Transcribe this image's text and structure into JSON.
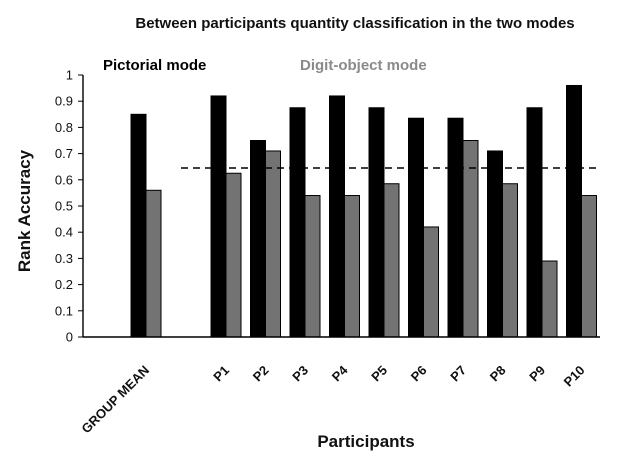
{
  "chart_data": {
    "type": "bar",
    "title": "Between participants quantity classification in the two modes",
    "xlabel": "Participants",
    "ylabel": "Rank Accuracy",
    "ylim": [
      0,
      1
    ],
    "yticks": [
      "0",
      "0.1",
      "0.2",
      "0.3",
      "0.4",
      "0.5",
      "0.6",
      "0.7",
      "0.8",
      "0.9",
      "1"
    ],
    "categories": [
      "GROUP MEAN",
      "P1",
      "P2",
      "P3",
      "P4",
      "P5",
      "P6",
      "P7",
      "P8",
      "P9",
      "P10"
    ],
    "series": [
      {
        "name": "Pictorial mode",
        "color": "#000000",
        "values": [
          0.85,
          0.92,
          0.75,
          0.875,
          0.92,
          0.875,
          0.835,
          0.835,
          0.71,
          0.875,
          0.96
        ]
      },
      {
        "name": "Digit-object mode",
        "color": "#737373",
        "values": [
          0.56,
          0.625,
          0.71,
          0.54,
          0.54,
          0.585,
          0.42,
          0.75,
          0.585,
          0.29,
          0.54
        ]
      }
    ],
    "reference_line": {
      "value": 0.645,
      "style": "dashed"
    },
    "grid": false,
    "legend": "top-left"
  }
}
